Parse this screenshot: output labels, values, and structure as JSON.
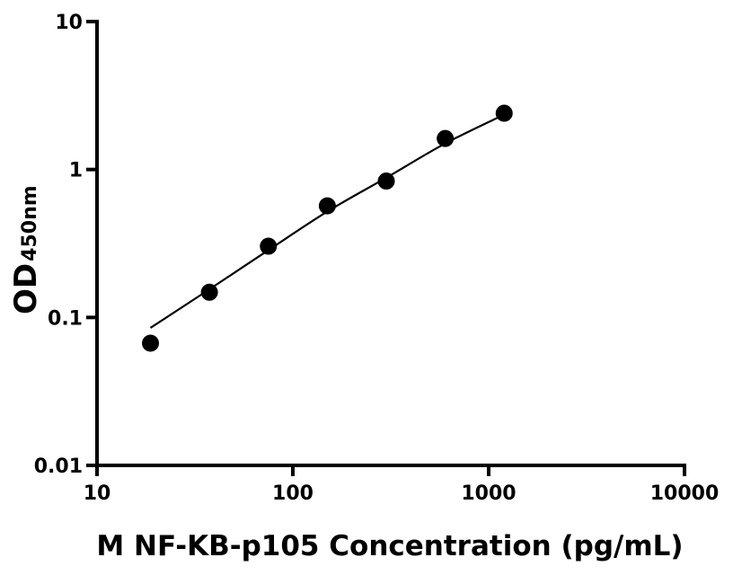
{
  "chart_data": {
    "type": "scatter",
    "xlabel": "M NF-KB-p105 Concentration (pg/mL)",
    "ylabel": {
      "main": "OD",
      "subscript": "450nm"
    },
    "xscale": "log",
    "yscale": "log",
    "xlim": [
      10,
      10000
    ],
    "ylim": [
      0.01,
      10
    ],
    "x_ticks": [
      {
        "value": 10,
        "label": "10"
      },
      {
        "value": 100,
        "label": "100"
      },
      {
        "value": 1000,
        "label": "1000"
      },
      {
        "value": 10000,
        "label": "10000"
      }
    ],
    "y_ticks": [
      {
        "value": 0.01,
        "label": "0.01"
      },
      {
        "value": 0.1,
        "label": "0.1"
      },
      {
        "value": 1,
        "label": "1"
      },
      {
        "value": 10,
        "label": "10"
      }
    ],
    "grid": false,
    "legend": "none",
    "series": [
      {
        "points": [
          {
            "x": 18.75,
            "y": 0.067
          },
          {
            "x": 37.5,
            "y": 0.148
          },
          {
            "x": 75,
            "y": 0.303
          },
          {
            "x": 150,
            "y": 0.568
          },
          {
            "x": 300,
            "y": 0.835
          },
          {
            "x": 600,
            "y": 1.62
          },
          {
            "x": 1200,
            "y": 2.4
          }
        ],
        "color": "#000000"
      }
    ],
    "fit_curve": {
      "points": [
        {
          "x": 18.75,
          "y": 0.085
        },
        {
          "x": 37.5,
          "y": 0.155
        },
        {
          "x": 75,
          "y": 0.285
        },
        {
          "x": 150,
          "y": 0.52
        },
        {
          "x": 300,
          "y": 0.88
        },
        {
          "x": 600,
          "y": 1.5
        },
        {
          "x": 1200,
          "y": 2.35
        }
      ],
      "color": "#000000"
    }
  }
}
